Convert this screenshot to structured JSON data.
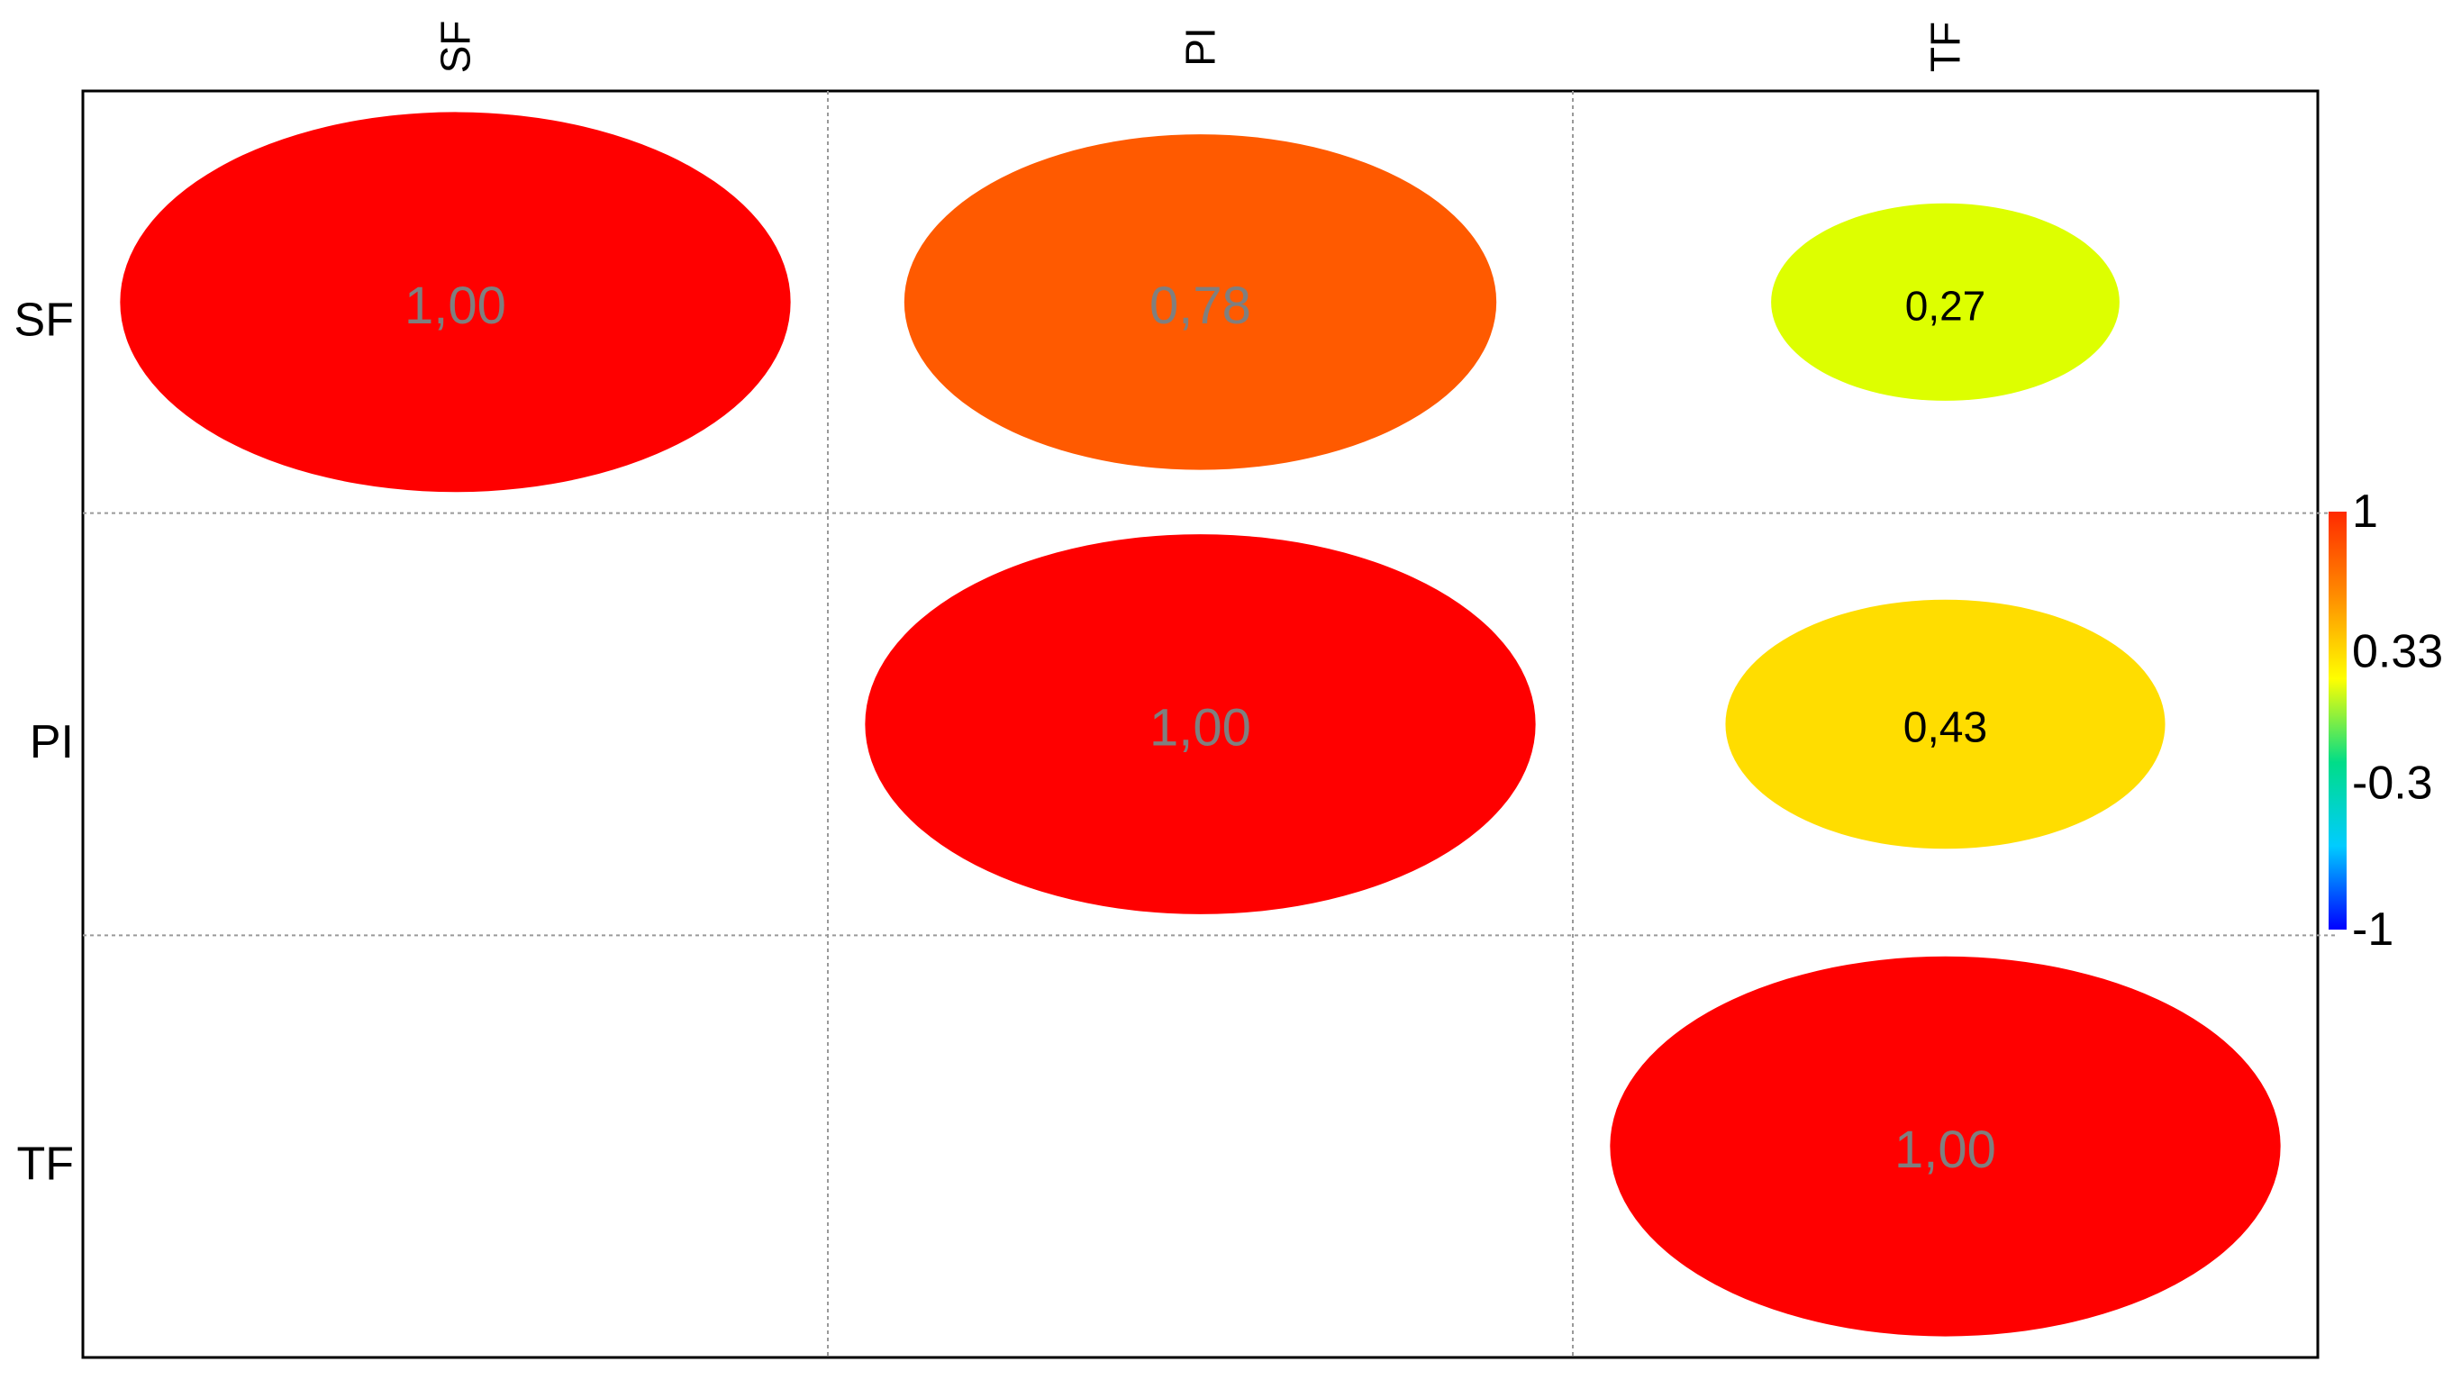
{
  "chart_data": {
    "type": "heatmap",
    "subtype": "correlation-ellipse-matrix",
    "variables": [
      "SF",
      "PI",
      "TF"
    ],
    "cells": [
      {
        "row": "SF",
        "col": "SF",
        "value": 1.0,
        "label": "1,00",
        "color": "#ff0000",
        "label_color": "#7f7f7f"
      },
      {
        "row": "SF",
        "col": "PI",
        "value": 0.78,
        "label": "0,78",
        "color": "#ff5a00",
        "label_color": "#7f7f7f"
      },
      {
        "row": "SF",
        "col": "TF",
        "value": 0.27,
        "label": "0,27",
        "color": "#ddff00",
        "label_color": "#000000"
      },
      {
        "row": "PI",
        "col": "PI",
        "value": 1.0,
        "label": "1,00",
        "color": "#ff0000",
        "label_color": "#7f7f7f"
      },
      {
        "row": "PI",
        "col": "TF",
        "value": 0.43,
        "label": "0,43",
        "color": "#ffdd00",
        "label_color": "#000000"
      },
      {
        "row": "TF",
        "col": "TF",
        "value": 1.0,
        "label": "1,00",
        "color": "#ff0000",
        "label_color": "#7f7f7f"
      }
    ],
    "colorbar": {
      "range": [
        -1,
        1
      ],
      "ticks": [
        {
          "value": 1,
          "label": "1"
        },
        {
          "value": 0.33,
          "label": "0.33"
        },
        {
          "value": -0.3,
          "label": "-0.3"
        },
        {
          "value": -1,
          "label": "-1"
        }
      ],
      "stops": [
        "#ff2a00",
        "#ff8c00",
        "#ffff00",
        "#00dd88",
        "#00ccff",
        "#0000ff"
      ]
    },
    "grid": true,
    "legend_position": "right"
  }
}
